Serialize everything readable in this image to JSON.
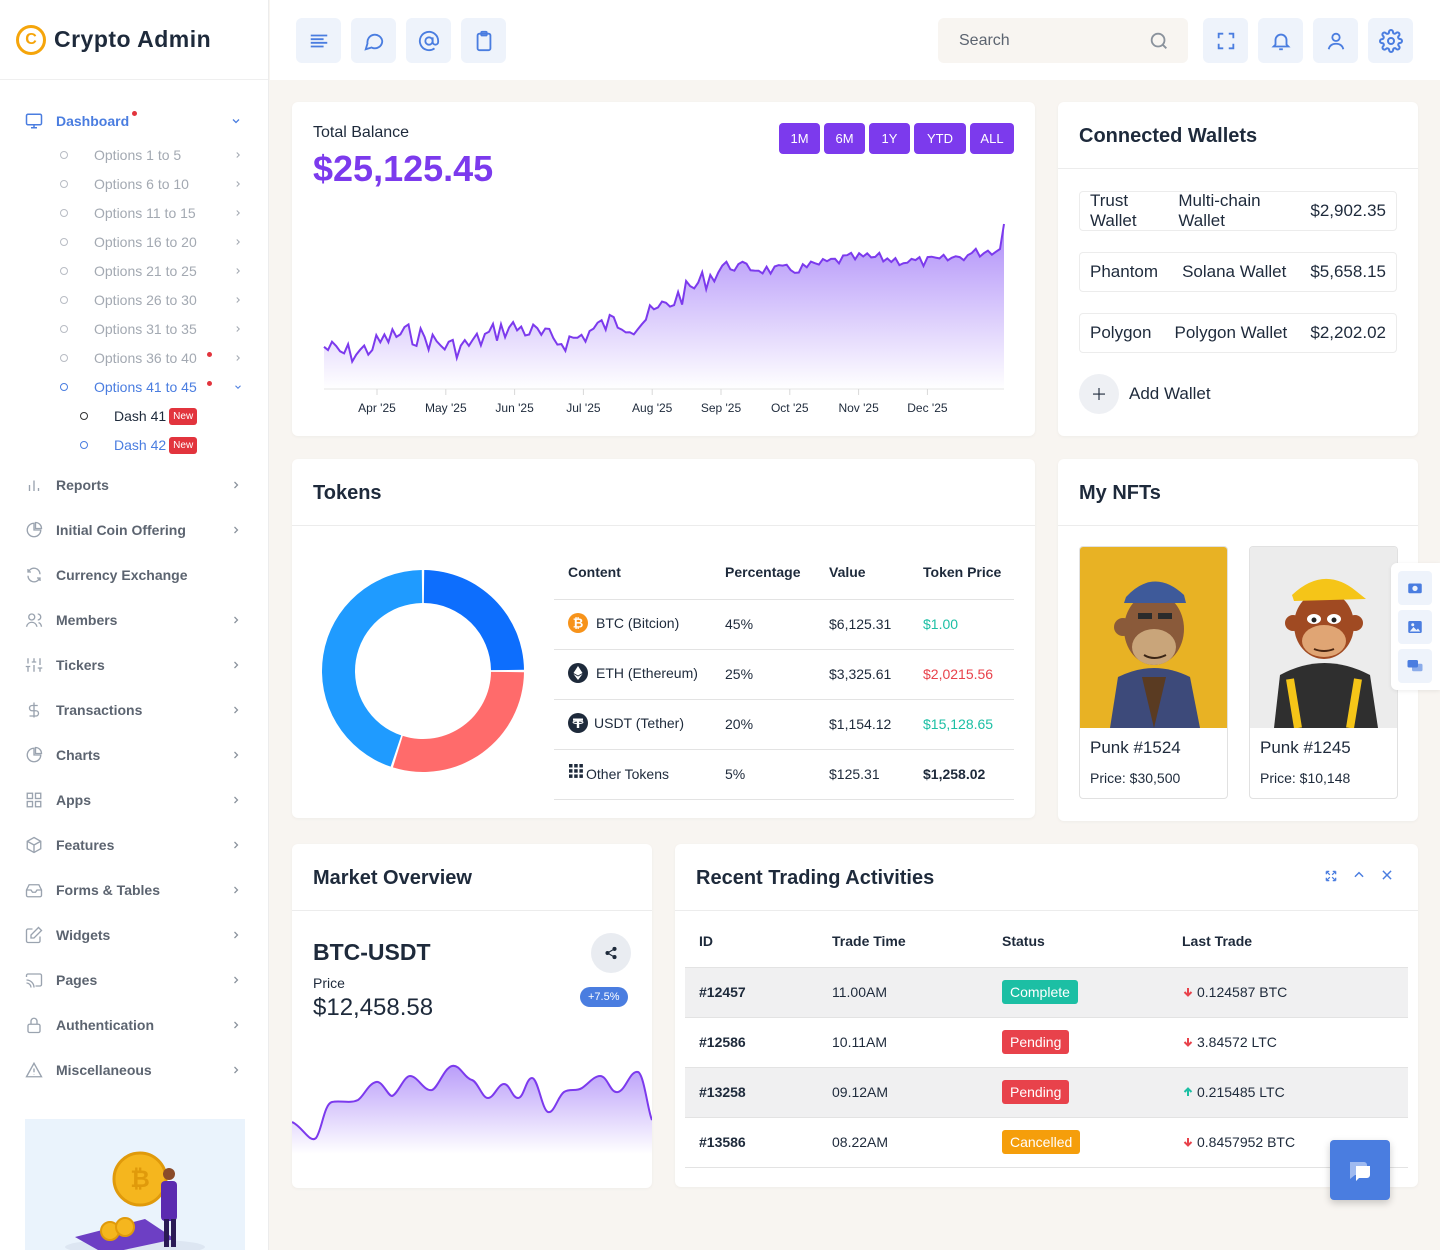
{
  "app": {
    "title": "Crypto Admin",
    "logo_letter": "C"
  },
  "sidebar": {
    "dashboard": "Dashboard",
    "options": [
      "Options 1 to 5",
      "Options 6 to 10",
      "Options 11 to 15",
      "Options 16 to 20",
      "Options 21 to 25",
      "Options 26 to 30",
      "Options 31 to 35",
      "Options 36 to 40",
      "Options 41 to 45"
    ],
    "dashes": [
      {
        "label": "Dash 41",
        "badge": "New"
      },
      {
        "label": "Dash 42",
        "badge": "New"
      }
    ],
    "items": [
      "Reports",
      "Initial Coin Offering",
      "Currency Exchange",
      "Members",
      "Tickers",
      "Transactions",
      "Charts",
      "Apps",
      "Features",
      "Forms & Tables",
      "Widgets",
      "Pages",
      "Authentication",
      "Miscellaneous"
    ]
  },
  "topbar": {
    "search_placeholder": "Search"
  },
  "balance": {
    "label": "Total Balance",
    "value": "$25,125.45",
    "ranges": [
      "1M",
      "6M",
      "1Y",
      "YTD",
      "ALL"
    ],
    "months": [
      "Apr '25",
      "May '25",
      "Jun '25",
      "Jul '25",
      "Aug '25",
      "Sep '25",
      "Oct '25",
      "Nov '25",
      "Dec '25"
    ]
  },
  "wallets": {
    "title": "Connected Wallets",
    "rows": [
      {
        "name": "Trust Wallet",
        "type": "Multi-chain Wallet",
        "amount": "$2,902.35"
      },
      {
        "name": "Phantom",
        "type": "Solana Wallet",
        "amount": "$5,658.15"
      },
      {
        "name": "Polygon",
        "type": "Polygon Wallet",
        "amount": "$2,202.02"
      }
    ],
    "add_label": "Add Wallet"
  },
  "tokens": {
    "title": "Tokens",
    "headers": [
      "Content",
      "Percentage",
      "Value",
      "Token Price"
    ],
    "rows": [
      {
        "name": "BTC (Bitcion)",
        "pct": "45%",
        "value": "$6,125.31",
        "price": "$1.00",
        "price_color": "#1cbfa4"
      },
      {
        "name": "ETH (Ethereum)",
        "pct": "25%",
        "value": "$3,325.61",
        "price": "$2,0215.56",
        "price_color": "#e8424b"
      },
      {
        "name": "USDT (Tether)",
        "pct": "20%",
        "value": "$1,154.12",
        "price": "$15,128.65",
        "price_color": "#1cbfa4"
      },
      {
        "name": "Other Tokens",
        "pct": "5%",
        "value": "$125.31",
        "price": "$1,258.02",
        "price_color": "#1e2a3b"
      }
    ],
    "donut": [
      {
        "value": 25,
        "color": "#0d6efd"
      },
      {
        "value": 30,
        "color": "#ff6b6b"
      },
      {
        "value": 45,
        "color": "#1f9bff"
      }
    ]
  },
  "nfts": {
    "title": "My NFTs",
    "items": [
      {
        "name": "Punk #1524",
        "price": "Price: $30,500"
      },
      {
        "name": "Punk #1245",
        "price": "Price: $10,148"
      }
    ]
  },
  "market": {
    "title": "Market Overview",
    "pair": "BTC-USDT",
    "price_label": "Price",
    "price": "$12,458.58",
    "change": "+7.5%"
  },
  "trading": {
    "title": "Recent Trading Activities",
    "headers": [
      "ID",
      "Trade Time",
      "Status",
      "Last Trade"
    ],
    "rows": [
      {
        "id": "#12457",
        "time": "11.00AM",
        "status": "Complete",
        "status_color": "#1cbfa4",
        "trade": "0.124587 BTC",
        "dir": "down"
      },
      {
        "id": "#12586",
        "time": "10.11AM",
        "status": "Pending",
        "status_color": "#e8424b",
        "trade": "3.84572 LTC",
        "dir": "down"
      },
      {
        "id": "#13258",
        "time": "09.12AM",
        "status": "Pending",
        "status_color": "#e8424b",
        "trade": "0.215485 LTC",
        "dir": "up"
      },
      {
        "id": "#13586",
        "time": "08.22AM",
        "status": "Cancelled",
        "status_color": "#f59e0b",
        "trade": "0.8457952 BTC",
        "dir": "down"
      }
    ]
  }
}
